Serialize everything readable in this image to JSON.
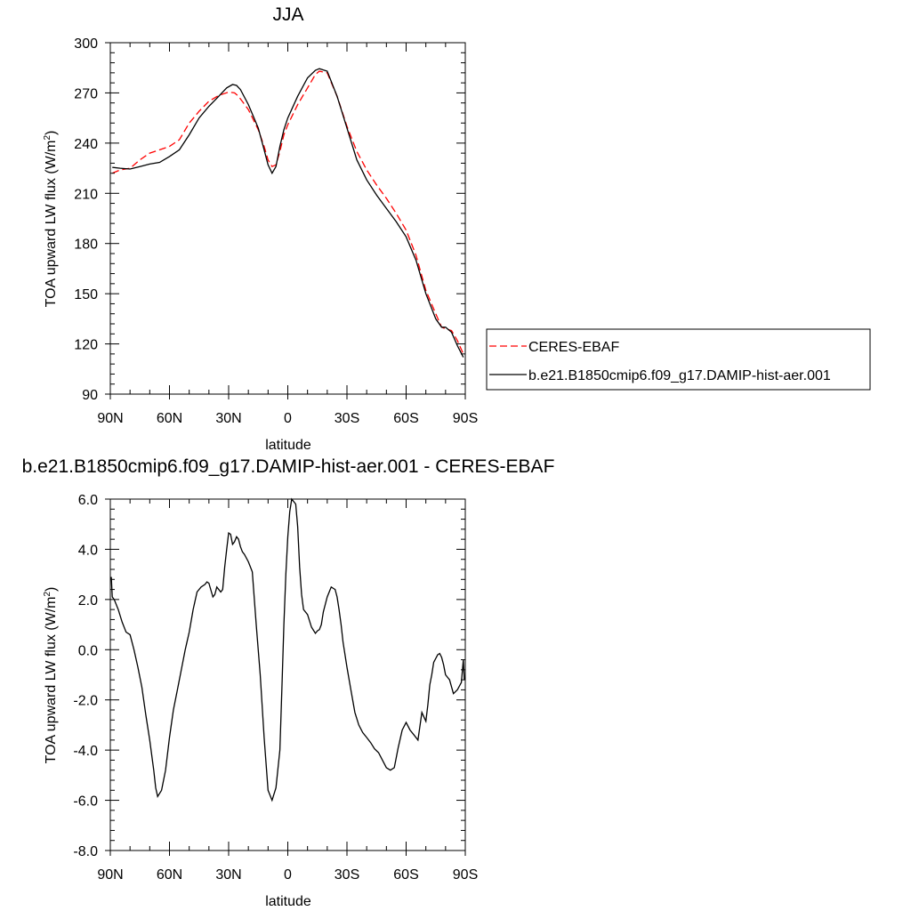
{
  "chart_data": [
    {
      "type": "line",
      "title": "JJA",
      "xlabel": "latitude",
      "ylabel_main": "TOA upward LW flux (W/m",
      "ylabel_sup": "2",
      "ylabel_close": ")",
      "xlim": [
        90,
        -90
      ],
      "ylim": [
        90,
        300
      ],
      "x_ticks": [
        90,
        60,
        30,
        0,
        -30,
        -60,
        -90
      ],
      "x_tick_labels": [
        "90N",
        "60N",
        "30N",
        "0",
        "30S",
        "60S",
        "90S"
      ],
      "y_ticks": [
        90,
        120,
        150,
        180,
        210,
        240,
        270,
        300
      ],
      "y_tick_labels": [
        "90",
        "120",
        "150",
        "180",
        "210",
        "240",
        "270",
        "300"
      ],
      "legend_position": "right",
      "series": [
        {
          "name": "CERES-EBAF",
          "color": "#ff0000",
          "dash": "dashed",
          "x": [
            89,
            85,
            80,
            75,
            70,
            65,
            60,
            55,
            50,
            45,
            40,
            35,
            30,
            27,
            25,
            20,
            15,
            12,
            10,
            8,
            6,
            4,
            2,
            0,
            -5,
            -10,
            -14,
            -16,
            -20,
            -25,
            -30,
            -35,
            -40,
            -45,
            -50,
            -55,
            -60,
            -65,
            -70,
            -75,
            -78,
            -80,
            -83,
            -86,
            -89
          ],
          "y": [
            222,
            224,
            225,
            230,
            234,
            236,
            238,
            242,
            252,
            259,
            265,
            268.5,
            270.5,
            270,
            268,
            260,
            248,
            238,
            230,
            226,
            227,
            235,
            245,
            251,
            263,
            273,
            281,
            283,
            282,
            268,
            250,
            235,
            224,
            215,
            207,
            198,
            188,
            173,
            152,
            138,
            130,
            129,
            128,
            122,
            114
          ]
        },
        {
          "name": "b.e21.B1850cmip6.f09_g17.DAMIP-hist-aer.001",
          "color": "#000000",
          "dash": "solid",
          "x": [
            89,
            85,
            80,
            75,
            70,
            65,
            60,
            55,
            50,
            45,
            40,
            35,
            31,
            28,
            26,
            24,
            20,
            15,
            12,
            10,
            8,
            6,
            4,
            2,
            0,
            -5,
            -10,
            -14,
            -16,
            -20,
            -25,
            -30,
            -35,
            -40,
            -45,
            -50,
            -55,
            -60,
            -65,
            -70,
            -75,
            -78,
            -80,
            -83,
            -86,
            -89
          ],
          "y": [
            225.5,
            225,
            224.5,
            226,
            227.5,
            228.5,
            232,
            236,
            245,
            255,
            262,
            268,
            273,
            275,
            274.5,
            272,
            263,
            249,
            236,
            227,
            222,
            226,
            238,
            248,
            255,
            268,
            279,
            283.5,
            284.5,
            283,
            268,
            249,
            230,
            218,
            209,
            201,
            193,
            184,
            170,
            150,
            135,
            130,
            130,
            127,
            119,
            112
          ]
        }
      ]
    },
    {
      "type": "line",
      "title": "b.e21.B1850cmip6.f09_g17.DAMIP-hist-aer.001 - CERES-EBAF",
      "xlabel": "latitude",
      "ylabel_main": "TOA upward LW flux (W/m",
      "ylabel_sup": "2",
      "ylabel_close": ")",
      "xlim": [
        90,
        -90
      ],
      "ylim": [
        -8,
        6
      ],
      "x_ticks": [
        90,
        60,
        30,
        0,
        -30,
        -60,
        -90
      ],
      "x_tick_labels": [
        "90N",
        "60N",
        "30N",
        "0",
        "30S",
        "60S",
        "90S"
      ],
      "y_ticks": [
        -8,
        -6,
        -4,
        -2,
        0,
        2,
        4,
        6
      ],
      "y_tick_labels": [
        "-8.0",
        "-6.0",
        "-4.0",
        "-2.0",
        "0.0",
        "2.0",
        "4.0",
        "6.0"
      ],
      "series": [
        {
          "color": "#000000",
          "dash": "solid",
          "x": [
            89.5,
            89,
            88,
            86,
            84,
            82,
            80,
            78,
            76,
            74,
            72,
            70,
            68,
            67,
            66,
            64,
            62,
            60,
            58,
            56,
            54,
            52,
            50,
            48,
            46,
            44,
            42,
            41,
            40,
            38,
            37,
            36,
            34,
            33,
            32,
            31,
            30,
            29,
            28,
            27,
            26,
            25,
            24,
            23,
            22,
            20,
            18,
            16,
            14,
            12,
            10,
            8,
            6,
            4,
            3,
            2,
            1,
            0,
            -1,
            -2,
            -4,
            -5,
            -6,
            -7,
            -8,
            -10,
            -12,
            -14,
            -15,
            -16,
            -17,
            -18,
            -20,
            -22,
            -24,
            -25,
            -26,
            -27,
            -28,
            -30,
            -32,
            -34,
            -36,
            -38,
            -40,
            -42,
            -44,
            -46,
            -48,
            -50,
            -52,
            -54,
            -55,
            -56,
            -58,
            -60,
            -62,
            -64,
            -66,
            -68,
            -70,
            -71,
            -72,
            -73,
            -74,
            -76,
            -77,
            -78,
            -79,
            -80,
            -82,
            -84,
            -86,
            -88,
            -89,
            -89.5
          ],
          "y": [
            2.9,
            2.1,
            2.0,
            1.6,
            1.1,
            0.7,
            0.6,
            0.0,
            -0.7,
            -1.5,
            -2.6,
            -3.6,
            -4.8,
            -5.5,
            -5.85,
            -5.6,
            -4.8,
            -3.5,
            -2.4,
            -1.6,
            -0.8,
            0.0,
            0.7,
            1.6,
            2.3,
            2.5,
            2.6,
            2.7,
            2.65,
            2.1,
            2.2,
            2.5,
            2.3,
            2.4,
            3.3,
            4.0,
            4.65,
            4.6,
            4.2,
            4.3,
            4.5,
            4.4,
            4.1,
            3.9,
            3.8,
            3.5,
            3.1,
            1.0,
            -1.0,
            -3.5,
            -5.6,
            -6.0,
            -5.5,
            -4.0,
            -1.5,
            1.0,
            3.0,
            4.5,
            5.5,
            6.0,
            5.8,
            4.9,
            3.3,
            2.2,
            1.6,
            1.4,
            0.9,
            0.65,
            0.75,
            0.8,
            1.0,
            1.5,
            2.1,
            2.5,
            2.4,
            2.1,
            1.6,
            1.0,
            0.3,
            -0.7,
            -1.6,
            -2.5,
            -3.0,
            -3.3,
            -3.5,
            -3.7,
            -3.95,
            -4.1,
            -4.4,
            -4.7,
            -4.8,
            -4.7,
            -4.3,
            -3.9,
            -3.2,
            -2.9,
            -3.2,
            -3.4,
            -3.6,
            -2.5,
            -2.85,
            -2.2,
            -1.4,
            -1.0,
            -0.5,
            -0.2,
            -0.15,
            -0.3,
            -0.6,
            -1.0,
            -1.2,
            -1.75,
            -1.6,
            -1.3,
            -0.4,
            -1.2
          ]
        }
      ]
    }
  ]
}
